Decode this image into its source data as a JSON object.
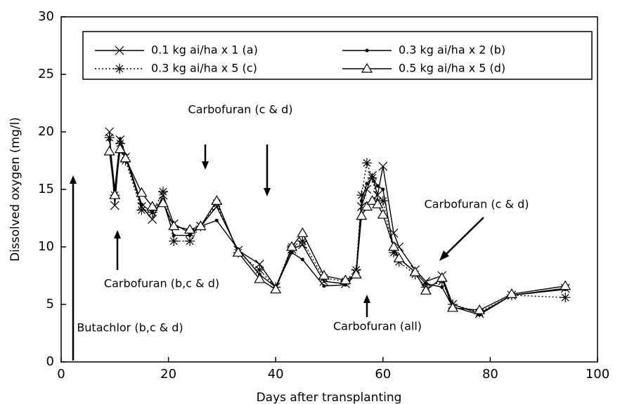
{
  "chart_data": {
    "type": "line",
    "x_label": "Days after transplanting",
    "y_label": "Dissolved oxygen (mg/l)",
    "x": [
      9,
      10,
      11,
      12,
      15,
      17,
      19,
      21,
      24,
      26,
      29,
      33,
      37,
      40,
      43,
      45,
      49,
      53,
      55,
      56,
      57,
      58,
      59,
      60,
      62,
      63,
      66,
      68,
      71,
      73,
      78,
      84,
      94
    ],
    "series": [
      {
        "name": "0.1 kg ai/ha x 1 (a)",
        "color": "#000000",
        "marker": "x",
        "dash": "solid",
        "values": [
          20,
          13.6,
          19.3,
          17.8,
          13.5,
          12.4,
          14.5,
          12,
          11.2,
          11.8,
          13.5,
          9.7,
          8.5,
          6.5,
          9.8,
          10.2,
          7,
          6.8,
          7.7,
          13.5,
          15,
          16.2,
          14.5,
          17,
          11.2,
          10,
          8,
          7,
          7.5,
          5,
          4.2,
          5.8,
          6.4
        ]
      },
      {
        "name": "0.3 kg ai/ha x 2 (b)",
        "color": "#000000",
        "marker": "dot",
        "dash": "solid",
        "values": [
          19.3,
          15,
          19.4,
          18,
          13.7,
          13,
          14,
          11,
          11,
          11.8,
          12.3,
          9.8,
          7.6,
          6.5,
          9.5,
          8.9,
          6.6,
          6.7,
          7.6,
          14,
          15.5,
          16,
          15.3,
          15,
          9.8,
          9,
          7.8,
          6.8,
          6.5,
          4.8,
          4.1,
          5.8,
          6.3
        ]
      },
      {
        "name": "0.3 kg ai/ha x 5 (c)",
        "color": "#000000",
        "marker": "star",
        "dash": "dotted",
        "values": [
          19.5,
          14.5,
          19,
          17.5,
          13.2,
          13,
          14.8,
          10.5,
          10.5,
          11.8,
          13.8,
          9.5,
          8,
          6.5,
          10,
          10.5,
          7.3,
          7,
          8,
          14.5,
          17.3,
          16,
          14,
          14,
          9.5,
          8.7,
          7.6,
          6.5,
          7,
          5,
          4.3,
          5.8,
          5.6
        ]
      },
      {
        "name": "0.5 kg ai/ha x 5 (d)",
        "color": "#000000",
        "marker": "triangle",
        "dash": "solid",
        "values": [
          18.3,
          14.5,
          18.5,
          17.7,
          14.7,
          13.5,
          13.8,
          11.8,
          11.5,
          11.8,
          14,
          9.5,
          7.2,
          6.3,
          10,
          11.2,
          7.5,
          7.1,
          7.6,
          12.7,
          13.5,
          14,
          13.7,
          12.8,
          10,
          9,
          7.8,
          6.2,
          7.3,
          4.7,
          4.5,
          5.9,
          6.6
        ]
      }
    ],
    "annotations": [
      "Carbofuran (c & d)",
      "Carbofuran (b,c & d)",
      "Butachlor (b,c & d)",
      "Carbofuran (all)",
      "Carbofuran (c & d)"
    ],
    "xlim": [
      0,
      100
    ],
    "xticks": [
      0,
      20,
      40,
      60,
      80,
      100
    ],
    "ylim": [
      0,
      30
    ],
    "yticks": [
      0,
      5,
      10,
      15,
      20,
      25,
      30
    ],
    "grid": false
  }
}
